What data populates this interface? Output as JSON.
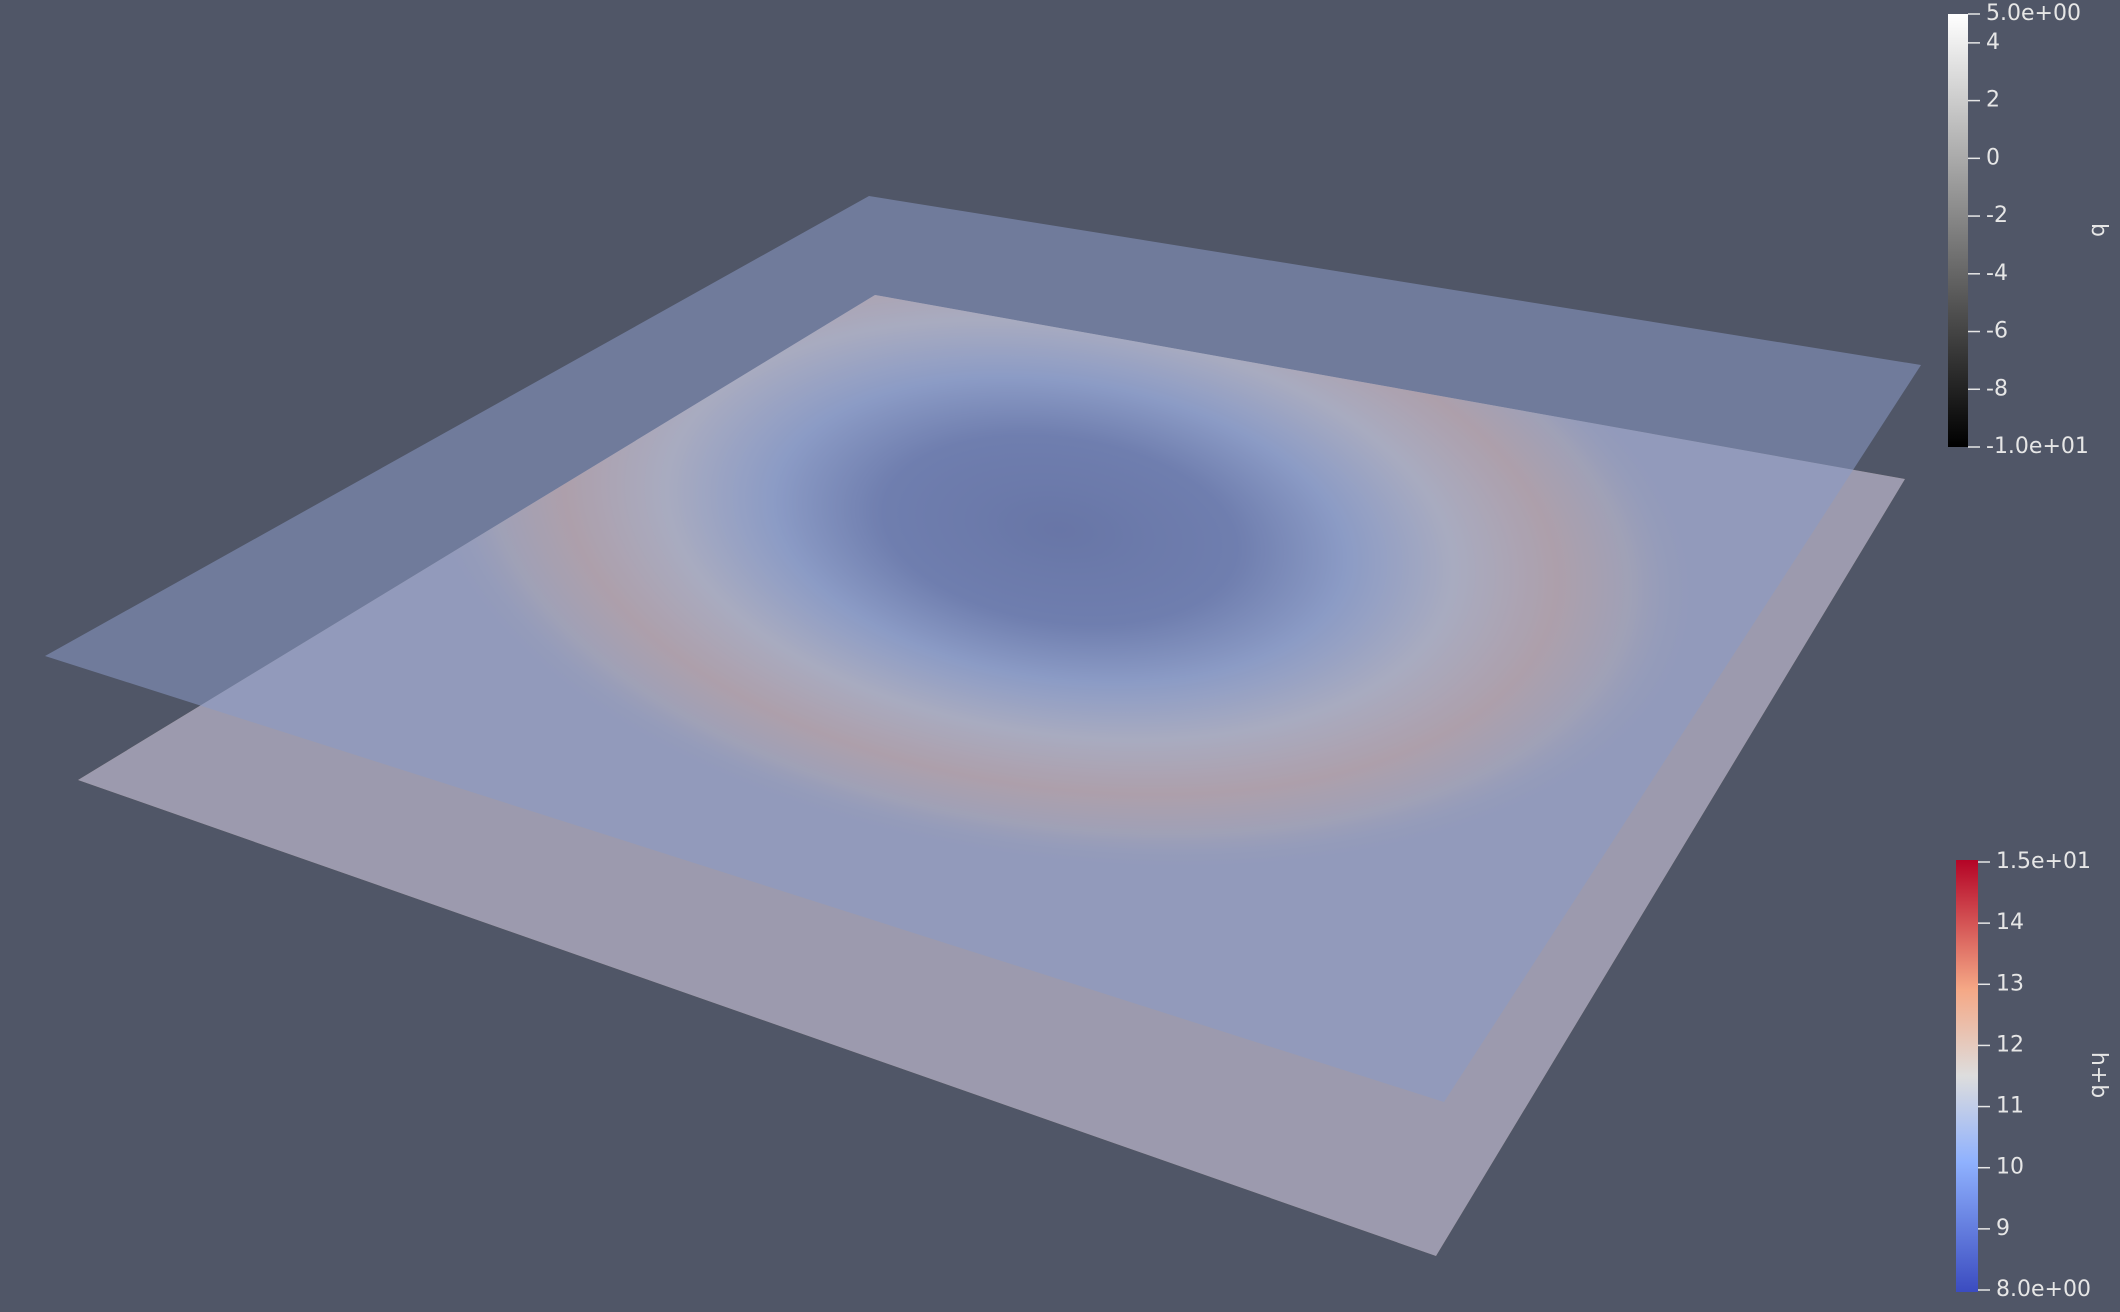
{
  "color_legends": [
    {
      "title": "b",
      "max": {
        "value": 5,
        "label": "5.0e+00"
      },
      "min": {
        "value": -10,
        "label": "-1.0e+01"
      },
      "ticks": [
        4,
        2,
        0,
        -2,
        -4,
        -6,
        -8
      ]
    },
    {
      "title": "h+b",
      "max": {
        "value": 15,
        "label": "1.5e+01"
      },
      "min": {
        "value": 8,
        "label": "8.0e+00"
      },
      "ticks": [
        14,
        13,
        12,
        11,
        10,
        9
      ]
    }
  ]
}
